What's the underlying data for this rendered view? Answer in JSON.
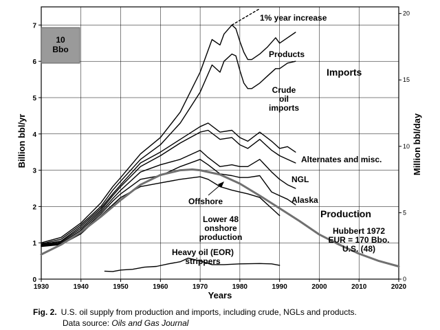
{
  "chart_data": {
    "type": "line",
    "title": "",
    "xlabel": "Years",
    "ylabel": "Billion bbl/yr",
    "y2label": "Million bbl/day",
    "xlim": [
      1930,
      2020
    ],
    "ylim": [
      0,
      7.5
    ],
    "y2lim": [
      0,
      20.5
    ],
    "xticks": [
      "1930",
      "1940",
      "1950",
      "1960",
      "1970",
      "1980",
      "1990",
      "2000",
      "2010",
      "2020"
    ],
    "yticks": [
      "0",
      "1",
      "2",
      "3",
      "4",
      "5",
      "6",
      "7"
    ],
    "y2ticks": [
      "0",
      "5",
      "10",
      "15",
      "20"
    ],
    "grid": true,
    "legend_box": {
      "label_line1": "10",
      "label_line2": "Bbo",
      "color": "#9a9a9a"
    },
    "series": [
      {
        "name": "Products",
        "color": "#000000",
        "x": [
          1930,
          1935,
          1940,
          1945,
          1948,
          1950,
          1955,
          1960,
          1965,
          1970,
          1973,
          1975,
          1976,
          1978,
          1979,
          1980,
          1981,
          1982,
          1983,
          1985,
          1987,
          1989,
          1990,
          1992,
          1994
        ],
        "y": [
          1.0,
          1.15,
          1.55,
          2.1,
          2.55,
          2.8,
          3.45,
          3.9,
          4.6,
          5.7,
          6.6,
          6.45,
          6.75,
          7.0,
          6.9,
          6.55,
          6.25,
          6.05,
          6.05,
          6.2,
          6.4,
          6.65,
          6.5,
          6.65,
          6.8
        ]
      },
      {
        "name": "Crude oil imports",
        "color": "#000000",
        "x": [
          1930,
          1935,
          1940,
          1945,
          1948,
          1950,
          1955,
          1960,
          1965,
          1970,
          1973,
          1975,
          1976,
          1978,
          1979,
          1980,
          1981,
          1982,
          1983,
          1985,
          1987,
          1989,
          1990,
          1992,
          1994
        ],
        "y": [
          0.97,
          1.1,
          1.5,
          2.0,
          2.45,
          2.7,
          3.3,
          3.7,
          4.3,
          5.15,
          5.9,
          5.7,
          6.0,
          6.2,
          6.15,
          5.75,
          5.4,
          5.25,
          5.25,
          5.4,
          5.6,
          5.8,
          5.8,
          5.95,
          6.0
        ]
      },
      {
        "name": "Alternates and misc.",
        "color": "#000000",
        "x": [
          1930,
          1935,
          1940,
          1945,
          1948,
          1950,
          1955,
          1960,
          1965,
          1970,
          1972,
          1975,
          1978,
          1980,
          1982,
          1985,
          1988,
          1990,
          1992,
          1994
        ],
        "y": [
          0.95,
          1.05,
          1.45,
          1.95,
          2.35,
          2.6,
          3.2,
          3.5,
          3.85,
          4.2,
          4.3,
          4.05,
          4.1,
          3.9,
          3.8,
          4.05,
          3.8,
          3.6,
          3.65,
          3.5
        ]
      },
      {
        "name": "NGL",
        "color": "#000000",
        "x": [
          1930,
          1935,
          1940,
          1945,
          1948,
          1950,
          1955,
          1960,
          1965,
          1970,
          1972,
          1975,
          1978,
          1980,
          1982,
          1985,
          1988,
          1990,
          1992,
          1994
        ],
        "y": [
          0.93,
          1.02,
          1.4,
          1.9,
          2.3,
          2.55,
          3.1,
          3.4,
          3.75,
          4.05,
          4.1,
          3.85,
          3.9,
          3.7,
          3.6,
          3.85,
          3.55,
          3.4,
          3.3,
          3.2
        ]
      },
      {
        "name": "Alaska",
        "color": "#000000",
        "x": [
          1930,
          1935,
          1940,
          1945,
          1948,
          1950,
          1955,
          1960,
          1965,
          1970,
          1972,
          1975,
          1978,
          1980,
          1982,
          1985,
          1988,
          1990,
          1992,
          1994
        ],
        "y": [
          0.92,
          0.99,
          1.35,
          1.85,
          2.22,
          2.45,
          2.95,
          3.15,
          3.3,
          3.55,
          3.35,
          3.1,
          3.15,
          3.1,
          3.1,
          3.3,
          2.95,
          2.75,
          2.6,
          2.5
        ]
      },
      {
        "name": "Offshore",
        "color": "#000000",
        "x": [
          1930,
          1935,
          1940,
          1945,
          1948,
          1950,
          1955,
          1960,
          1965,
          1970,
          1972,
          1975,
          1978,
          1980,
          1982,
          1985,
          1988,
          1990,
          1992,
          1994
        ],
        "y": [
          0.91,
          0.97,
          1.3,
          1.8,
          2.15,
          2.35,
          2.75,
          2.85,
          3.1,
          3.3,
          3.15,
          2.9,
          2.85,
          2.8,
          2.8,
          2.85,
          2.4,
          2.3,
          2.2,
          2.05
        ]
      },
      {
        "name": "Lower 48 onshore production",
        "color": "#000000",
        "x": [
          1930,
          1935,
          1940,
          1945,
          1948,
          1950,
          1955,
          1960,
          1965,
          1970,
          1972,
          1975,
          1978,
          1980,
          1982,
          1985,
          1988,
          1990
        ],
        "y": [
          0.9,
          0.95,
          1.25,
          1.75,
          2.05,
          2.25,
          2.55,
          2.65,
          2.75,
          2.82,
          2.75,
          2.55,
          2.45,
          2.4,
          2.35,
          2.25,
          1.95,
          1.75
        ]
      },
      {
        "name": "Heavy oil (EOR) strippers",
        "color": "#000000",
        "x": [
          1946,
          1948,
          1950,
          1953,
          1956,
          1959,
          1962,
          1965,
          1967,
          1970,
          1973,
          1976,
          1980,
          1985,
          1988,
          1990
        ],
        "y": [
          0.22,
          0.21,
          0.25,
          0.27,
          0.33,
          0.35,
          0.42,
          0.48,
          0.58,
          0.5,
          0.4,
          0.4,
          0.42,
          0.43,
          0.42,
          0.38
        ]
      },
      {
        "name": "Hubbert 1972 EUR = 170 Bbo. U.S. (48)",
        "color": "#707070",
        "x": [
          1930,
          1935,
          1940,
          1945,
          1950,
          1955,
          1960,
          1965,
          1968,
          1970,
          1975,
          1980,
          1985,
          1990,
          1995,
          2000,
          2005,
          2010,
          2015,
          2020
        ],
        "y": [
          0.68,
          0.95,
          1.3,
          1.72,
          2.18,
          2.6,
          2.87,
          3.0,
          3.02,
          3.0,
          2.88,
          2.63,
          2.3,
          1.95,
          1.6,
          1.23,
          0.95,
          0.7,
          0.5,
          0.35
        ]
      },
      {
        "name": "1% year increase",
        "color": "#000000",
        "dashed": true,
        "x": [
          1978,
          1985
        ],
        "y": [
          7.0,
          7.45
        ]
      }
    ],
    "annotations": {
      "one_percent": "1% year increase",
      "products": "Products",
      "imports": "Imports",
      "crude_1": "Crude",
      "crude_2": "oil",
      "crude_3": "imports",
      "alternates": "Alternates and misc.",
      "ngl": "NGL",
      "alaska": "Alaska",
      "offshore": "Offshore",
      "production": "Production",
      "lower48_1": "Lower 48",
      "lower48_2": "onshore",
      "lower48_3": "production",
      "hubbert_1": "Hubbert 1972",
      "hubbert_2": "EUR = 170 Bbo.",
      "hubbert_3": "U.S. (48)",
      "heavy_1": "Heavy oil (EOR)",
      "heavy_2": "strippers"
    }
  },
  "caption": {
    "fig_label": "Fig. 2.",
    "text": "U.S. oil supply from production and imports, including crude, NGLs and products.",
    "source_prefix": "Data source:",
    "source_name": "Oils and Gas Journal"
  }
}
